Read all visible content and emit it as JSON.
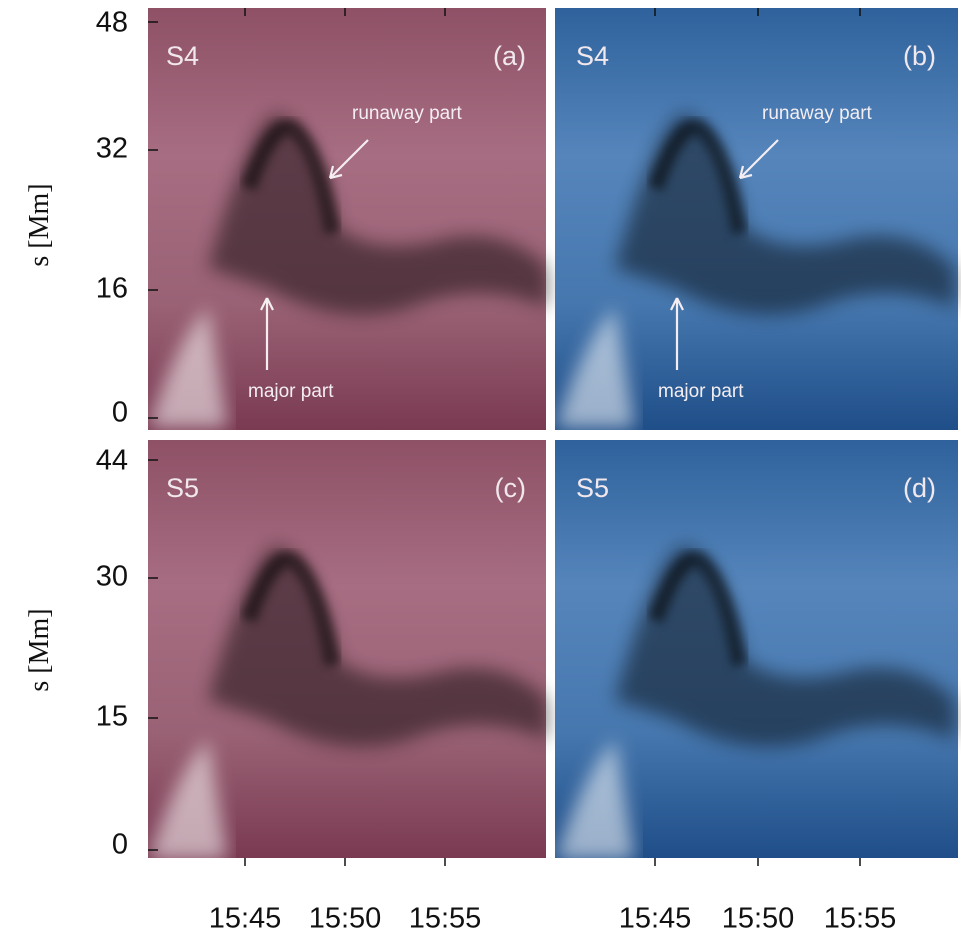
{
  "xticks": [
    "15:45",
    "15:50",
    "15:55"
  ],
  "rows": [
    {
      "y_label": "s [Mm]",
      "yticks": [
        "48",
        "32",
        "16",
        "0"
      ],
      "panels": [
        {
          "slit": "S4",
          "tag": "(a)",
          "annotations": [
            "runaway part",
            "major part"
          ]
        },
        {
          "slit": "S4",
          "tag": "(b)",
          "annotations": [
            "runaway part",
            "major part"
          ]
        }
      ]
    },
    {
      "y_label": "s [Mm]",
      "yticks": [
        "44",
        "30",
        "15",
        "0"
      ],
      "panels": [
        {
          "slit": "S5",
          "tag": "(c)"
        },
        {
          "slit": "S5",
          "tag": "(d)"
        }
      ]
    }
  ]
}
